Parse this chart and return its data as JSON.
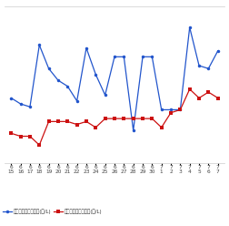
{
  "x_labels": [
    "6\n15",
    "6\n16",
    "6\n17",
    "6\n18",
    "6\n19",
    "6\n20",
    "6\n21",
    "6\n22",
    "6\n23",
    "6\n24",
    "6\n25",
    "6\n26",
    "6\n27",
    "6\n28",
    "6\n29",
    "6\n30",
    "7\n1",
    "7\n2",
    "7\n3",
    "7\n4",
    "7\n5",
    "7\n6",
    "7\n7"
  ],
  "blue_values": [
    134,
    132,
    131,
    152,
    144,
    140,
    138,
    133,
    151,
    142,
    135,
    148,
    148,
    123,
    148,
    148,
    130,
    130,
    130,
    158,
    145,
    144,
    150
  ],
  "red_values": [
    122,
    121,
    121,
    118,
    126,
    126,
    126,
    125,
    126,
    124,
    127,
    127,
    127,
    127,
    127,
    127,
    124,
    129,
    130,
    137,
    134,
    136,
    134
  ],
  "blue_color": "#2255cc",
  "red_color": "#cc1111",
  "blue_label": "レギュラー看板価格(円/L)",
  "red_label": "レギュラー実売価格(円/L)",
  "background_color": "#ffffff",
  "grid_color": "#cccccc",
  "ylim": [
    112,
    165
  ],
  "marker_size": 2.5,
  "linewidth": 0.9
}
